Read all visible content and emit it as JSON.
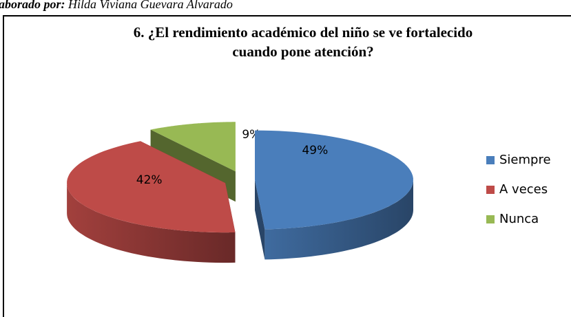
{
  "source_label": "aborado por:",
  "source_name": "Hilda Viviana Guevara Alvarado",
  "chart_data": {
    "type": "pie",
    "title": [
      "6. ¿El rendimiento académico del niño se ve fortalecido",
      "cuando pone atención?"
    ],
    "categories": [
      "Siempre",
      "A veces",
      "Nunca"
    ],
    "values": [
      49,
      42,
      9
    ],
    "value_labels": [
      "49%",
      "42%",
      "9%"
    ],
    "colors": [
      "#4a7ebb",
      "#be4b48",
      "#98b954"
    ],
    "legend": "right"
  }
}
